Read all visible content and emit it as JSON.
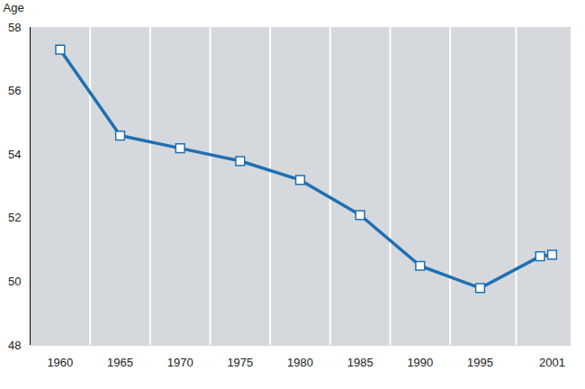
{
  "chart_data": {
    "type": "line",
    "y_label": "Age",
    "x": [
      1960,
      1965,
      1970,
      1975,
      1980,
      1985,
      1990,
      1995,
      2000,
      2001
    ],
    "values": [
      57.3,
      54.6,
      54.2,
      53.8,
      53.2,
      52.1,
      50.5,
      49.8,
      50.8,
      50.85
    ],
    "color": "#1f6fb2",
    "marker": "square",
    "xlim": [
      1957.5,
      2002.5
    ],
    "ylim": [
      48,
      58
    ],
    "xticks": [
      1960,
      1965,
      1970,
      1975,
      1980,
      1985,
      1990,
      1995,
      2001
    ],
    "yticks": [
      48,
      50,
      52,
      54,
      56,
      58
    ],
    "grid": true
  }
}
